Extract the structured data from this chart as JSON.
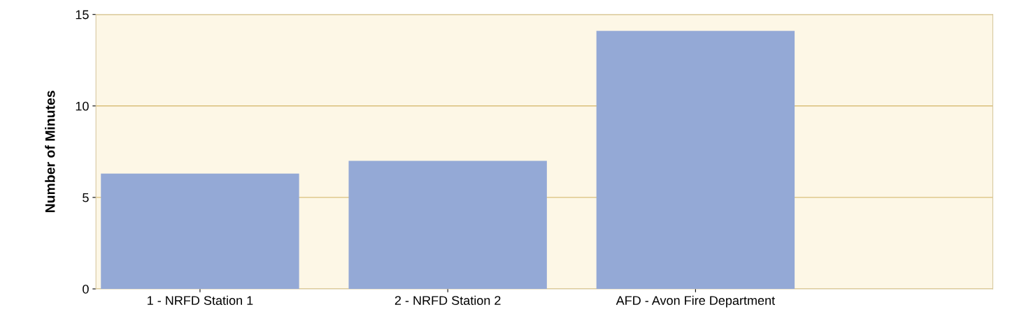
{
  "chart_data": {
    "type": "bar",
    "ylabel": "Number of Minutes",
    "categories": [
      "1 - NRFD Station 1",
      "2 - NRFD Station 2",
      "AFD - Avon Fire Department"
    ],
    "values": [
      6.3,
      7.0,
      14.1
    ],
    "color": "#94a9d6",
    "ylim": [
      0,
      15
    ],
    "yticks": [
      0,
      5,
      10,
      15
    ],
    "grid": "y"
  }
}
